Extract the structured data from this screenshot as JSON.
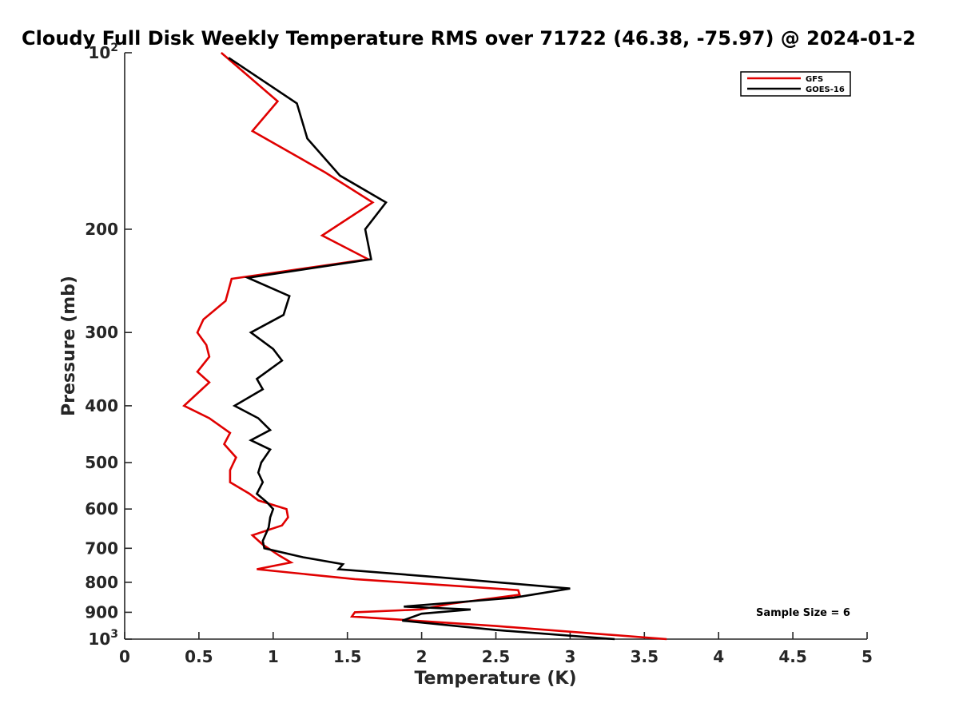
{
  "chart_data": {
    "type": "line",
    "title": "Cloudy Full Disk Weekly Temperature RMS over 71722 (46.38, -75.97) @ 2024-01-2",
    "xlabel": "Temperature (K)",
    "ylabel": "Pressure (mb)",
    "xlim": [
      0,
      5
    ],
    "ylim": [
      100,
      1000
    ],
    "yscale": "log",
    "y_reversed": true,
    "grid": false,
    "legend_position": "top-right",
    "x_ticks": [
      0,
      0.5,
      1,
      1.5,
      2,
      2.5,
      3,
      3.5,
      4,
      4.5,
      5
    ],
    "x_tick_labels": [
      "0",
      "0.5",
      "1",
      "1.5",
      "2",
      "2.5",
      "3",
      "3.5",
      "4",
      "4.5",
      "5"
    ],
    "y_ticks": [
      {
        "value": 100,
        "base": "10",
        "exp": "2"
      },
      {
        "value": 200,
        "label": "200"
      },
      {
        "value": 300,
        "label": "300"
      },
      {
        "value": 400,
        "label": "400"
      },
      {
        "value": 500,
        "label": "500"
      },
      {
        "value": 600,
        "label": "600"
      },
      {
        "value": 700,
        "label": "700"
      },
      {
        "value": 800,
        "label": "800"
      },
      {
        "value": 900,
        "label": "900"
      },
      {
        "value": 1000,
        "base": "10",
        "exp": "3"
      }
    ],
    "series": [
      {
        "name": "GFS",
        "color": "#e00000",
        "x": [
          0.65,
          1.03,
          0.86,
          1.35,
          1.67,
          1.33,
          1.64,
          0.72,
          0.68,
          0.53,
          0.49,
          0.55,
          0.57,
          0.49,
          0.57,
          0.4,
          0.57,
          0.71,
          0.67,
          0.75,
          0.71,
          0.71,
          0.84,
          0.9,
          1.09,
          1.1,
          1.06,
          0.86,
          0.93,
          1.04,
          1.12,
          0.89,
          1.55,
          2.65,
          2.66,
          2.2,
          1.99,
          1.55,
          1.53,
          2.5,
          3.65
        ],
        "y": [
          100,
          121,
          136,
          160,
          180,
          205,
          225,
          243,
          265,
          285,
          300,
          315,
          330,
          350,
          365,
          400,
          420,
          445,
          465,
          490,
          515,
          540,
          565,
          580,
          600,
          620,
          640,
          665,
          690,
          720,
          740,
          760,
          790,
          825,
          840,
          870,
          890,
          900,
          915,
          950,
          1000
        ]
      },
      {
        "name": "GOES-16",
        "color": "#000000",
        "x": [
          0.7,
          1.16,
          1.23,
          1.45,
          1.76,
          1.62,
          1.66,
          0.83,
          1.11,
          1.07,
          0.85,
          1.0,
          1.06,
          0.89,
          0.93,
          0.74,
          0.9,
          0.98,
          0.85,
          0.98,
          0.92,
          0.9,
          0.93,
          0.89,
          0.96,
          1.0,
          0.98,
          0.97,
          0.93,
          0.94,
          1.2,
          1.47,
          1.44,
          2.13,
          3.0,
          2.62,
          1.88,
          2.33,
          2.0,
          1.87,
          2.5,
          3.3
        ],
        "y": [
          102,
          122,
          140,
          162,
          180,
          200,
          225,
          242,
          260,
          280,
          300,
          320,
          335,
          360,
          375,
          400,
          420,
          440,
          458,
          475,
          500,
          520,
          540,
          565,
          585,
          600,
          620,
          645,
          680,
          700,
          725,
          745,
          760,
          785,
          820,
          850,
          880,
          890,
          905,
          930,
          965,
          1000
        ]
      }
    ],
    "annotation": "Sample Size = 6"
  }
}
